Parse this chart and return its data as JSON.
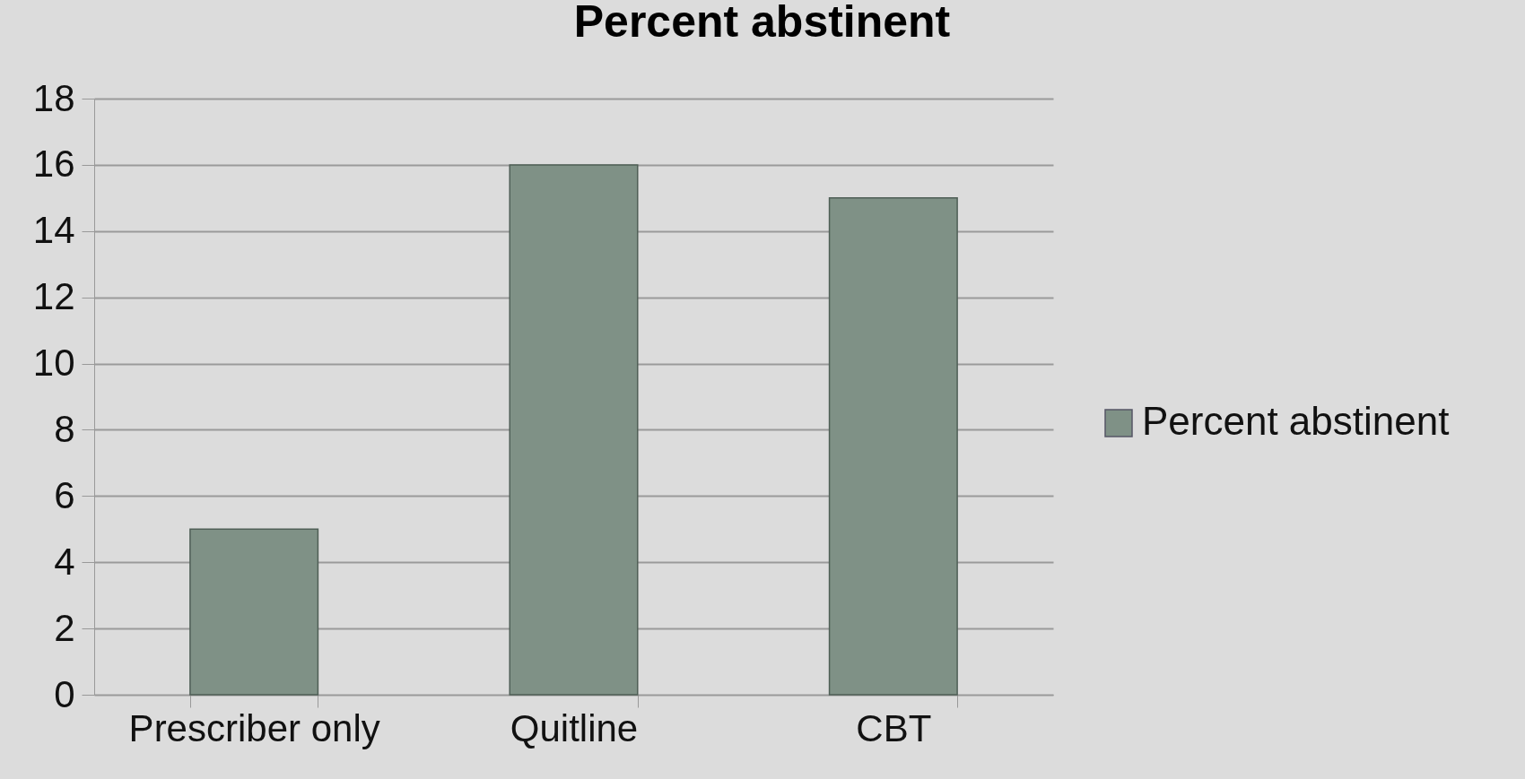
{
  "chart_data": {
    "type": "bar",
    "title": "Percent abstinent",
    "categories": [
      "Prescriber only",
      "Quitline",
      "CBT"
    ],
    "series": [
      {
        "name": "Percent abstinent",
        "color": "#7f9186",
        "values": [
          5,
          16,
          15
        ]
      }
    ],
    "ylim": [
      0,
      18
    ],
    "yticks": [
      0,
      2,
      4,
      6,
      8,
      10,
      12,
      14,
      16,
      18
    ],
    "grid": "y",
    "legend": "right"
  }
}
